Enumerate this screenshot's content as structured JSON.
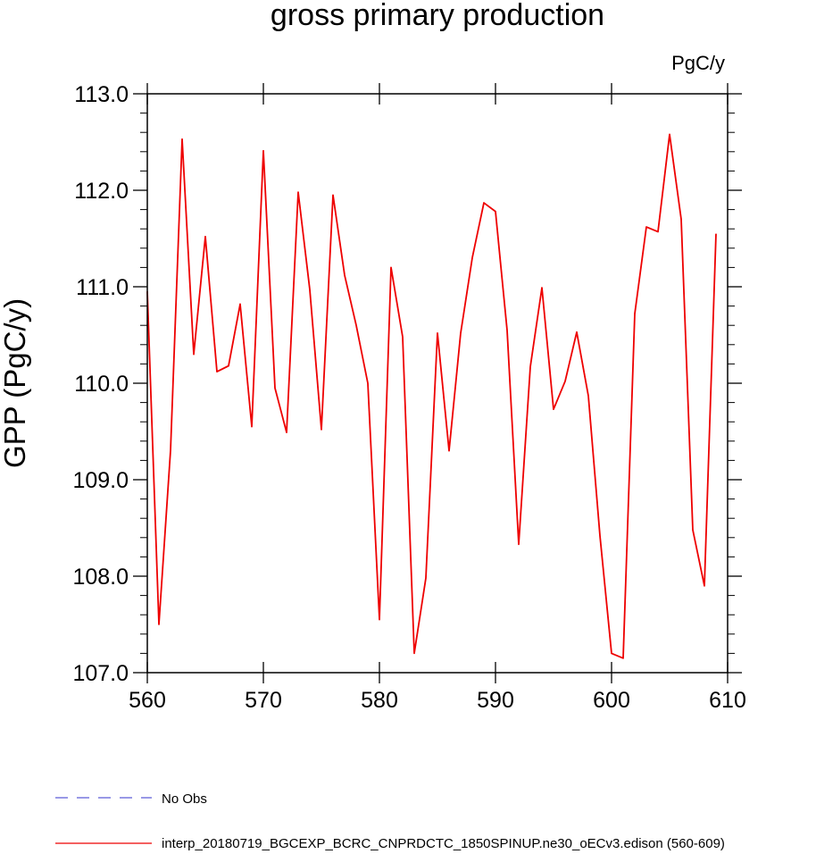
{
  "chart_data": {
    "type": "line",
    "title": "gross primary production",
    "units": "PgC/y",
    "xlabel": "",
    "ylabel": "GPP  (PgC/y)",
    "xlim": [
      560,
      610
    ],
    "ylim": [
      107.0,
      113.0
    ],
    "x_ticks": [
      560,
      570,
      580,
      590,
      600,
      610
    ],
    "x_tick_labels": [
      "560",
      "570",
      "580",
      "590",
      "600",
      "610"
    ],
    "y_ticks": [
      107.0,
      108.0,
      109.0,
      110.0,
      111.0,
      112.0,
      113.0
    ],
    "y_tick_labels": [
      "107.0",
      "108.0",
      "109.0",
      "110.0",
      "111.0",
      "112.0",
      "113.0"
    ],
    "grid": false,
    "legend_position": "bottom",
    "series": [
      {
        "name": "No Obs",
        "color": "#3333cc",
        "style": "dashed",
        "x": [],
        "values": []
      },
      {
        "name": "interp_20180719_BGCEXP_BCRC_CNPRDCTC_1850SPINUP.ne30_oECv3.edison (560-609)",
        "color": "#ee0000",
        "style": "solid",
        "x": [
          560,
          561,
          562,
          563,
          564,
          565,
          566,
          567,
          568,
          569,
          570,
          571,
          572,
          573,
          574,
          575,
          576,
          577,
          578,
          579,
          580,
          581,
          582,
          583,
          584,
          585,
          586,
          587,
          588,
          589,
          590,
          591,
          592,
          593,
          594,
          595,
          596,
          597,
          598,
          599,
          600,
          601,
          602,
          603,
          604,
          605,
          606,
          607,
          608,
          609
        ],
        "values": [
          110.95,
          107.5,
          109.3,
          112.53,
          110.3,
          111.52,
          110.12,
          110.18,
          110.82,
          109.55,
          112.41,
          109.95,
          109.49,
          111.98,
          110.97,
          109.52,
          111.95,
          111.12,
          110.6,
          110.0,
          107.55,
          111.2,
          110.48,
          107.2,
          107.98,
          110.52,
          109.3,
          110.52,
          111.3,
          111.87,
          111.78,
          110.55,
          108.33,
          110.17,
          110.99,
          109.73,
          110.02,
          110.53,
          109.87,
          108.42,
          107.2,
          107.15,
          110.72,
          111.62,
          111.57,
          112.58,
          111.7,
          108.48,
          107.9,
          111.55
        ]
      }
    ]
  }
}
